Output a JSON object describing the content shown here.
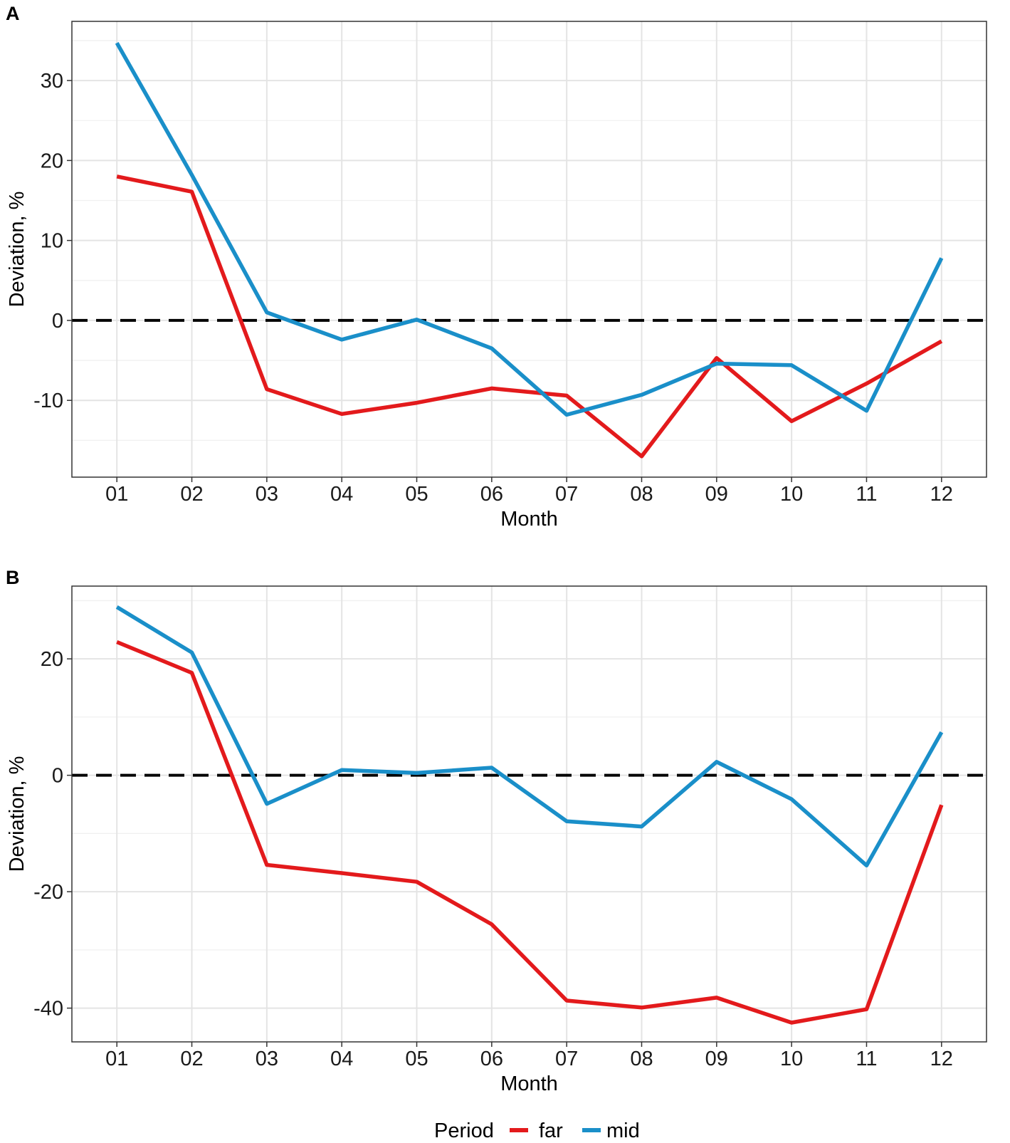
{
  "legend": {
    "title": "Period",
    "entries": [
      {
        "name": "far",
        "color": "#e31a1c"
      },
      {
        "name": "mid",
        "color": "#1a8fc9"
      }
    ]
  },
  "chart_data": [
    {
      "type": "line",
      "panel": "A",
      "xlabel": "Month",
      "ylabel": "Deviation, %",
      "categories": [
        "01",
        "02",
        "03",
        "04",
        "05",
        "06",
        "07",
        "08",
        "09",
        "10",
        "11",
        "12"
      ],
      "ylim": [
        -19.6,
        37.4
      ],
      "yticks": [
        -10,
        0,
        10,
        20,
        30
      ],
      "yticklabels": [
        "-10",
        "0",
        "10",
        "20",
        "30"
      ],
      "reference_line": 0,
      "grid": true,
      "series": [
        {
          "name": "far",
          "color": "#e31a1c",
          "values": [
            18.0,
            16.1,
            -8.6,
            -11.7,
            -10.3,
            -8.5,
            -9.4,
            -17.0,
            -4.7,
            -12.6,
            -7.9,
            -2.6
          ]
        },
        {
          "name": "mid",
          "color": "#1a8fc9",
          "values": [
            34.7,
            18.2,
            1.0,
            -2.4,
            0.1,
            -3.5,
            -11.8,
            -9.3,
            -5.4,
            -5.6,
            -11.3,
            7.8
          ]
        }
      ]
    },
    {
      "type": "line",
      "panel": "B",
      "xlabel": "Month",
      "ylabel": "Deviation, %",
      "categories": [
        "01",
        "02",
        "03",
        "04",
        "05",
        "06",
        "07",
        "08",
        "09",
        "10",
        "11",
        "12"
      ],
      "ylim": [
        -45.8,
        32.5
      ],
      "yticks": [
        -40,
        -20,
        0,
        20
      ],
      "yticklabels": [
        "-40",
        "-20",
        "0",
        "20"
      ],
      "reference_line": 0,
      "grid": true,
      "series": [
        {
          "name": "far",
          "color": "#e31a1c",
          "values": [
            22.9,
            17.6,
            -15.4,
            -16.8,
            -18.3,
            -25.6,
            -38.7,
            -39.9,
            -38.2,
            -42.5,
            -40.2,
            -5.1
          ]
        },
        {
          "name": "mid",
          "color": "#1a8fc9",
          "values": [
            28.9,
            21.1,
            -4.9,
            0.9,
            0.4,
            1.3,
            -7.9,
            -8.8,
            2.3,
            -4.1,
            -15.5,
            7.4
          ]
        }
      ]
    }
  ]
}
